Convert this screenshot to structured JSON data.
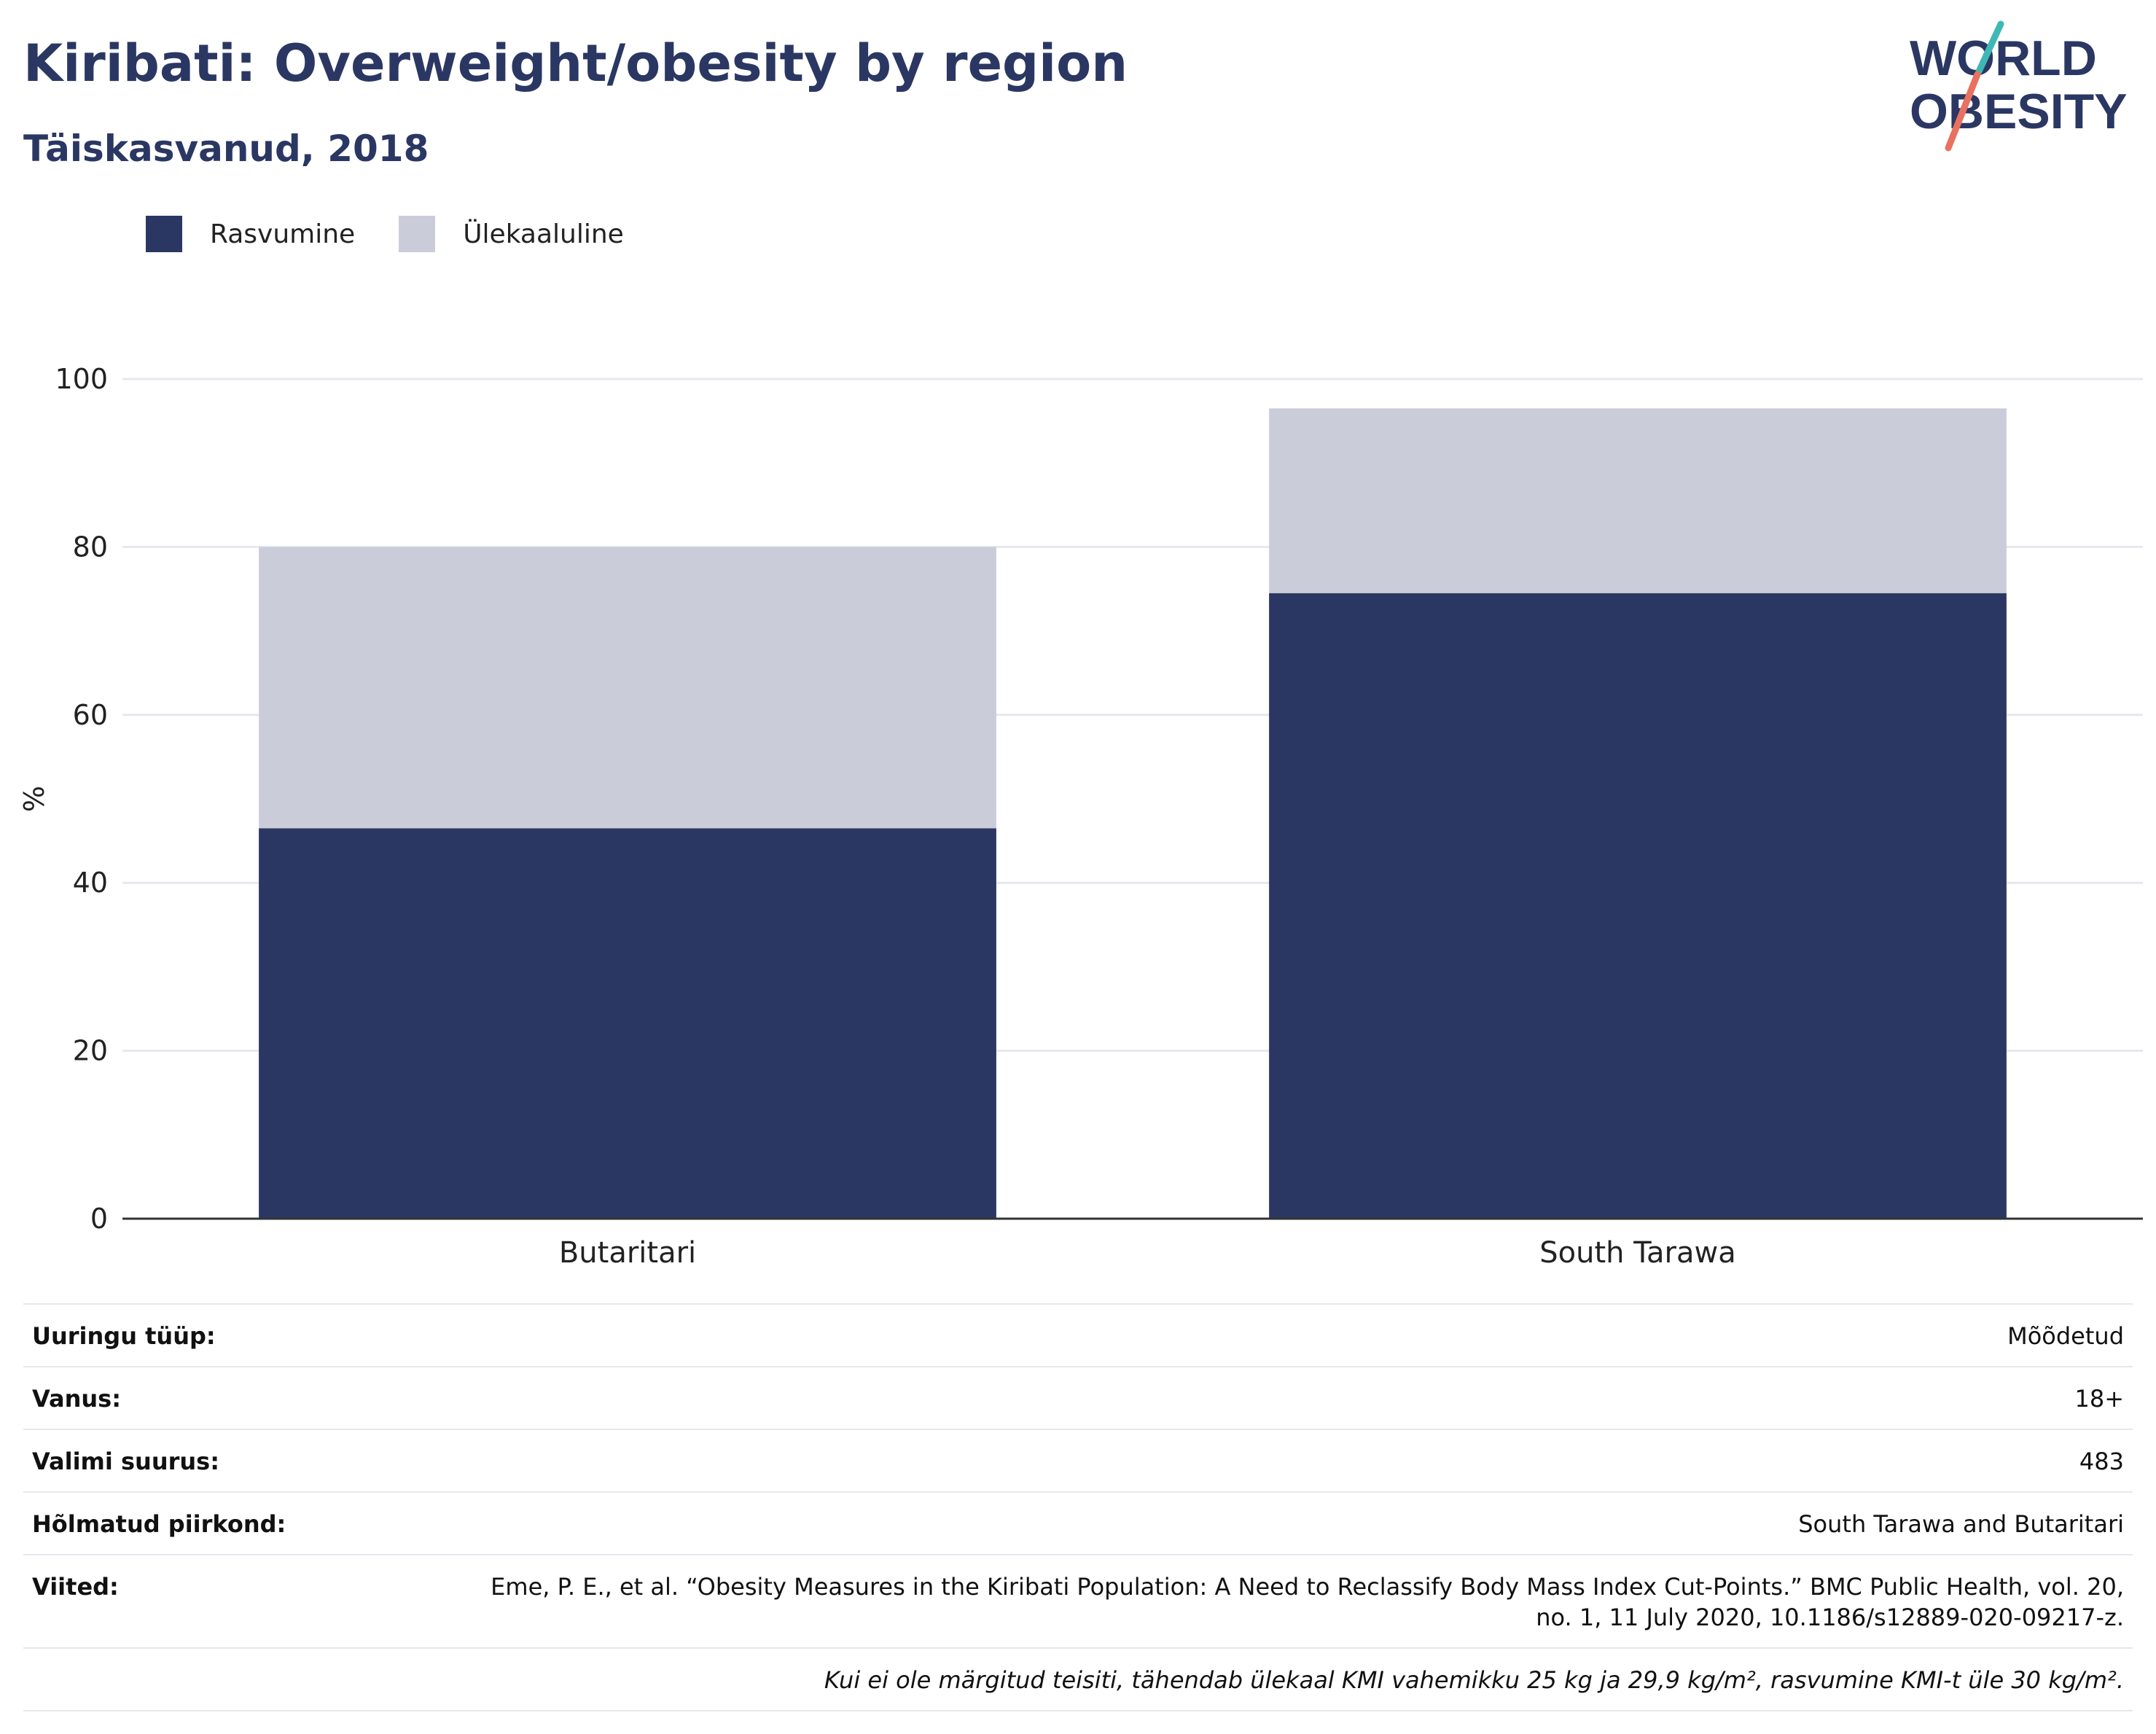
{
  "header": {
    "title": "Kiribati: Overweight/obesity by region",
    "subtitle": "Täiskasvanud, 2018"
  },
  "logo": {
    "line1": "WORLD",
    "line2": "OBESITY",
    "icon": "world-obesity-logo"
  },
  "colors": {
    "obesity": "#2b3763",
    "overweight": "#cacdd9",
    "text": "#2b3763",
    "grid": "#e6e8ee",
    "logo_slash_teal": "#3fb8b5",
    "logo_slash_coral": "#e8715f"
  },
  "chart_data": {
    "type": "bar",
    "stacked": true,
    "categories": [
      "Butaritari",
      "South Tarawa"
    ],
    "series": [
      {
        "name": "Rasvumine",
        "values": [
          46.5,
          74.5
        ]
      },
      {
        "name": "Ülekaaluline",
        "values": [
          33.5,
          22.0
        ]
      }
    ],
    "ylabel": "%",
    "ylim": [
      0,
      100
    ],
    "yticks": [
      0,
      20,
      40,
      60,
      80,
      100
    ],
    "grid": true,
    "legend_position": "top-left"
  },
  "meta": {
    "rows": [
      {
        "label": "Uuringu tüüp:",
        "value": "Mõõdetud"
      },
      {
        "label": "Vanus:",
        "value": "18+"
      },
      {
        "label": "Valimi suurus:",
        "value": "483"
      },
      {
        "label": "Hõlmatud piirkond:",
        "value": "South Tarawa and Butaritari"
      },
      {
        "label": "Viited:",
        "value": "Eme, P. E., et al. “Obesity Measures in the Kiribati Population: A Need to Reclassify Body Mass Index Cut-Points.” BMC Public Health, vol. 20, no. 1, 11 July 2020, 10.1186/s12889-020-09217-z."
      }
    ],
    "note": "Kui ei ole märgitud teisiti, tähendab ülekaal KMI vahemikku 25 kg ja 29,9 kg/m², rasvumine KMI-t üle 30 kg/m²."
  }
}
